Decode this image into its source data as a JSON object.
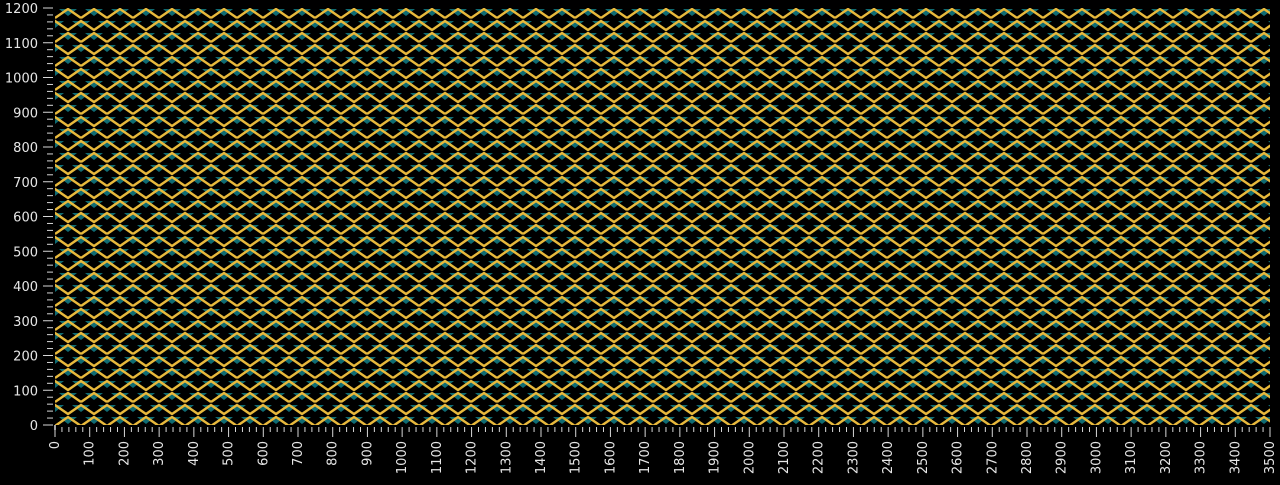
{
  "colors": {
    "background": "#000000",
    "stripe": "#e8b93c",
    "fill": "#0f6b73",
    "axis": "#d8d8d8",
    "label": "#e6e6e6"
  },
  "x_axis": {
    "min": 0,
    "max": 3500,
    "major_step": 100,
    "minor_step": 20,
    "tick_labels": [
      "0",
      "100",
      "200",
      "300",
      "400",
      "500",
      "600",
      "700",
      "800",
      "900",
      "1000",
      "1100",
      "1200",
      "1300",
      "1400",
      "1500",
      "1600",
      "1700",
      "1800",
      "1900",
      "2000",
      "2100",
      "2200",
      "2300",
      "2400",
      "2500",
      "2600",
      "2700",
      "2800",
      "2900",
      "3000",
      "3100",
      "3200",
      "3300",
      "3400",
      "3500"
    ]
  },
  "y_axis": {
    "min": 0,
    "max": 1200,
    "major_step": 100,
    "minor_step": 20,
    "tick_labels": [
      "0",
      "100",
      "200",
      "300",
      "400",
      "500",
      "600",
      "700",
      "800",
      "900",
      "1000",
      "1100",
      "1200"
    ]
  },
  "pattern": {
    "name": "zigzag-triangles"
  }
}
